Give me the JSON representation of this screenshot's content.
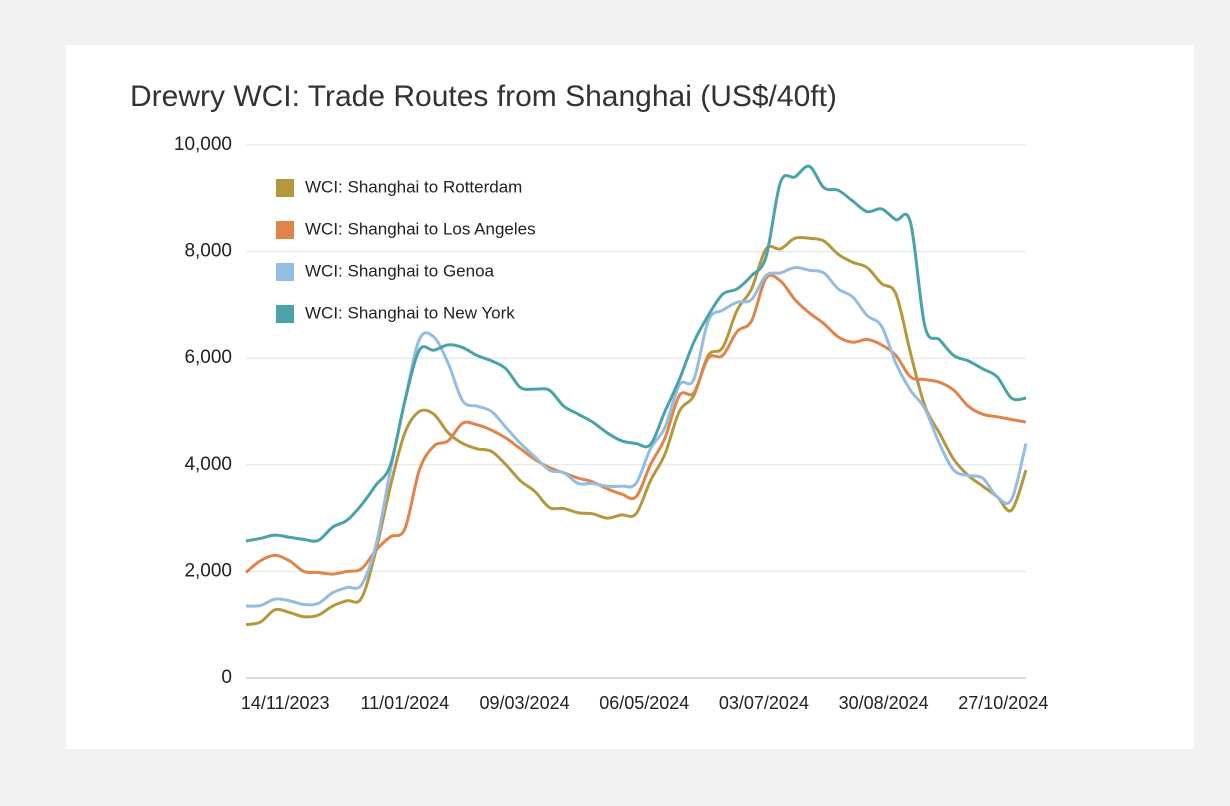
{
  "chart_data": {
    "type": "line",
    "title": "Drewry WCI: Trade Routes from Shanghai (US$/40ft)",
    "x": [
      "26/10/2023",
      "02/11/2023",
      "09/11/2023",
      "16/11/2023",
      "23/11/2023",
      "30/11/2023",
      "07/12/2023",
      "14/12/2023",
      "21/12/2023",
      "28/12/2023",
      "04/01/2024",
      "11/01/2024",
      "18/01/2024",
      "25/01/2024",
      "01/02/2024",
      "08/02/2024",
      "15/02/2024",
      "22/02/2024",
      "29/02/2024",
      "07/03/2024",
      "14/03/2024",
      "21/03/2024",
      "28/03/2024",
      "04/04/2024",
      "11/04/2024",
      "18/04/2024",
      "25/04/2024",
      "02/05/2024",
      "09/05/2024",
      "16/05/2024",
      "23/05/2024",
      "30/05/2024",
      "06/06/2024",
      "13/06/2024",
      "20/06/2024",
      "27/06/2024",
      "04/07/2024",
      "11/07/2024",
      "18/07/2024",
      "25/07/2024",
      "01/08/2024",
      "08/08/2024",
      "15/08/2024",
      "22/08/2024",
      "29/08/2024",
      "05/09/2024",
      "12/09/2024",
      "19/09/2024",
      "26/09/2024",
      "03/10/2024",
      "10/10/2024",
      "17/10/2024",
      "24/10/2024",
      "31/10/2024",
      "07/11/2024"
    ],
    "series": [
      {
        "name": "WCI: Shanghai to Rotterdam",
        "color": "#b5973e",
        "values": [
          1000,
          1050,
          1280,
          1230,
          1150,
          1180,
          1350,
          1450,
          1500,
          2400,
          3600,
          4600,
          5000,
          4950,
          4600,
          4400,
          4300,
          4250,
          4000,
          3700,
          3500,
          3200,
          3180,
          3100,
          3080,
          3000,
          3060,
          3080,
          3700,
          4200,
          5000,
          5300,
          6050,
          6200,
          6900,
          7300,
          8050,
          8050,
          8250,
          8250,
          8200,
          7950,
          7800,
          7700,
          7400,
          7200,
          6100,
          5100,
          4600,
          4100,
          3800,
          3600,
          3400,
          3150,
          3900
        ]
      },
      {
        "name": "WCI: Shanghai to Los Angeles",
        "color": "#e0844a",
        "values": [
          1980,
          2200,
          2300,
          2200,
          2000,
          1980,
          1950,
          2000,
          2050,
          2400,
          2650,
          2800,
          3900,
          4350,
          4450,
          4780,
          4750,
          4650,
          4500,
          4300,
          4100,
          3950,
          3850,
          3750,
          3680,
          3550,
          3450,
          3400,
          4000,
          4500,
          5300,
          5350,
          6000,
          6050,
          6500,
          6700,
          7500,
          7450,
          7100,
          6850,
          6650,
          6400,
          6300,
          6350,
          6250,
          6050,
          5650,
          5600,
          5550,
          5400,
          5100,
          4950,
          4900,
          4850,
          4800
        ]
      },
      {
        "name": "WCI: Shanghai to Genoa",
        "color": "#93bde2",
        "values": [
          1350,
          1360,
          1480,
          1450,
          1380,
          1400,
          1600,
          1700,
          1750,
          2500,
          3900,
          5200,
          6350,
          6400,
          5900,
          5200,
          5100,
          5000,
          4700,
          4400,
          4150,
          3900,
          3850,
          3650,
          3650,
          3600,
          3600,
          3650,
          4300,
          4700,
          5500,
          5600,
          6700,
          6900,
          7050,
          7100,
          7550,
          7600,
          7700,
          7650,
          7600,
          7300,
          7150,
          6800,
          6600,
          5900,
          5400,
          5050,
          4400,
          3900,
          3800,
          3750,
          3400,
          3350,
          4400
        ]
      },
      {
        "name": "WCI: Shanghai to New York",
        "color": "#4aa3a8",
        "values": [
          2570,
          2620,
          2680,
          2640,
          2600,
          2580,
          2830,
          2960,
          3250,
          3620,
          4000,
          5200,
          6150,
          6150,
          6250,
          6200,
          6050,
          5950,
          5800,
          5450,
          5420,
          5400,
          5100,
          4950,
          4800,
          4600,
          4450,
          4400,
          4380,
          5000,
          5600,
          6300,
          6800,
          7200,
          7300,
          7550,
          7900,
          9300,
          9400,
          9600,
          9200,
          9150,
          8950,
          8750,
          8800,
          8600,
          8550,
          6600,
          6350,
          6050,
          5950,
          5800,
          5650,
          5250,
          5250
        ]
      }
    ],
    "xlim": [
      "26/10/2023",
      "07/11/2024"
    ],
    "xticks": [
      "14/11/2023",
      "11/01/2024",
      "09/03/2024",
      "06/05/2024",
      "03/07/2024",
      "30/08/2024",
      "27/10/2024"
    ],
    "ylim": [
      0,
      10000
    ],
    "yticks": [
      0,
      {
        "value": 2000,
        "label": "2,000"
      },
      {
        "value": 4000,
        "label": "4,000"
      },
      {
        "value": 6000,
        "label": "6,000"
      },
      {
        "value": 8000,
        "label": "8,000"
      },
      {
        "value": 10000,
        "label": "10,000"
      }
    ],
    "grid": true,
    "legend": "upper left"
  }
}
